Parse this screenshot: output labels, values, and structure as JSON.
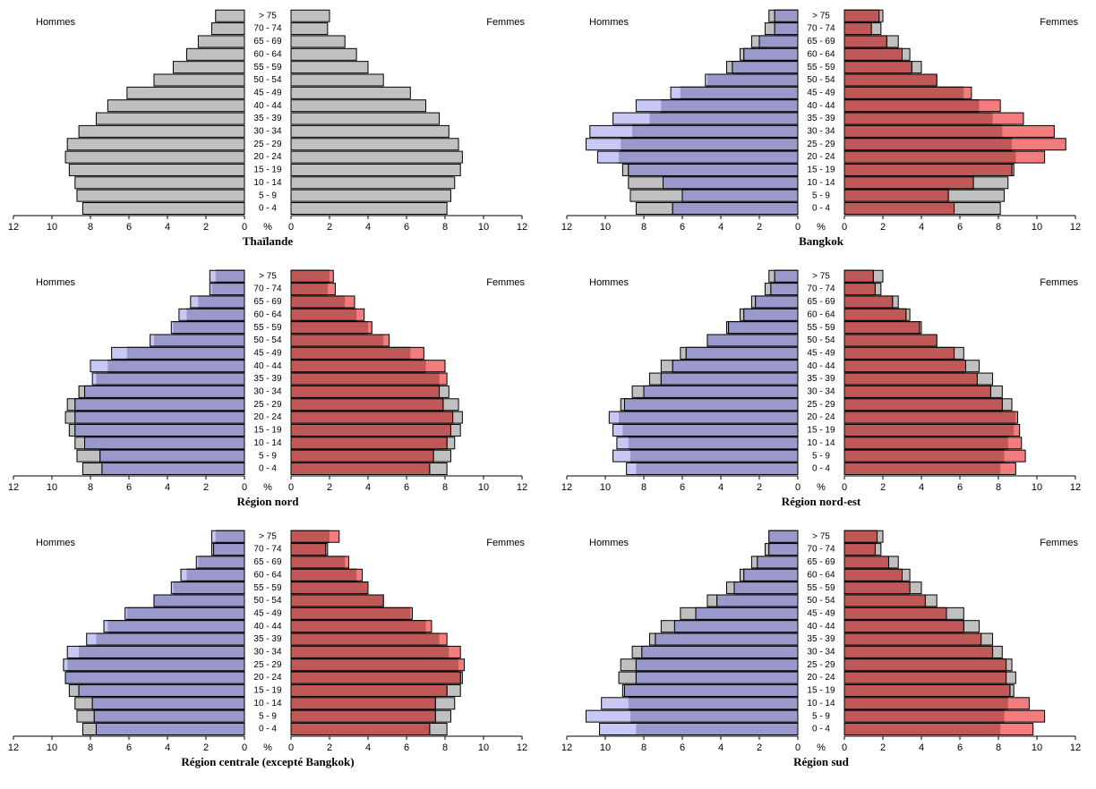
{
  "chart_data": [
    {
      "type": "pyramid",
      "title": "Thaïlande",
      "axis_unit": "%",
      "categories": [
        "0 - 4",
        "5 - 9",
        "10 - 14",
        "15 - 19",
        "20 - 24",
        "25 - 29",
        "30 - 34",
        "35 - 39",
        "40 - 44",
        "45 - 49",
        "50 - 54",
        "55 - 59",
        "60 - 64",
        "65 - 69",
        "70 - 74",
        "> 75"
      ],
      "series": [
        {
          "name": "Hommes",
          "color": "#c0c0c0",
          "values": [
            8.4,
            8.7,
            8.8,
            9.1,
            9.3,
            9.2,
            8.6,
            7.7,
            7.1,
            6.1,
            4.7,
            3.7,
            3.0,
            2.4,
            1.7,
            1.5
          ]
        },
        {
          "name": "Femmes",
          "color": "#c0c0c0",
          "values": [
            8.1,
            8.3,
            8.5,
            8.8,
            8.9,
            8.7,
            8.2,
            7.7,
            7.0,
            6.2,
            4.8,
            4.0,
            3.4,
            2.8,
            1.9,
            2.0
          ]
        }
      ],
      "xlim": [
        0,
        12
      ],
      "xticks": [
        0,
        2,
        4,
        6,
        8,
        10,
        12
      ]
    },
    {
      "type": "pyramid",
      "title": "Bangkok",
      "axis_unit": "%",
      "categories": [
        "0 - 4",
        "5 - 9",
        "10 - 14",
        "15 - 19",
        "20 - 24",
        "25 - 29",
        "30 - 34",
        "35 - 39",
        "40 - 44",
        "45 - 49",
        "50 - 54",
        "55 - 59",
        "60 - 64",
        "65 - 69",
        "70 - 74",
        "> 75"
      ],
      "series": [
        {
          "name": "Hommes",
          "color": "#9999cc",
          "light_color": "#c8c8f4",
          "values": [
            6.5,
            6.0,
            7.0,
            8.8,
            10.4,
            11.0,
            10.8,
            9.6,
            8.4,
            6.6,
            4.8,
            3.4,
            2.8,
            2.0,
            1.2,
            1.2
          ]
        },
        {
          "name": "Femmes",
          "color": "#c05858",
          "light_color": "#f47c7c",
          "values": [
            5.7,
            5.4,
            6.7,
            8.7,
            10.4,
            11.5,
            10.9,
            9.3,
            8.1,
            6.6,
            4.8,
            3.5,
            3.0,
            2.2,
            1.4,
            1.8
          ]
        }
      ],
      "reference_series": [
        {
          "color": "#c0c0c0",
          "values": [
            8.4,
            8.7,
            8.8,
            9.1,
            9.3,
            9.2,
            8.6,
            7.7,
            7.1,
            6.1,
            4.7,
            3.7,
            3.0,
            2.4,
            1.7,
            1.5
          ]
        },
        {
          "color": "#c0c0c0",
          "values": [
            8.1,
            8.3,
            8.5,
            8.8,
            8.9,
            8.7,
            8.2,
            7.7,
            7.0,
            6.2,
            4.8,
            4.0,
            3.4,
            2.8,
            1.9,
            2.0
          ]
        }
      ],
      "xlim": [
        0,
        12
      ],
      "xticks": [
        0,
        2,
        4,
        6,
        8,
        10,
        12
      ]
    },
    {
      "type": "pyramid",
      "title": "Région nord",
      "axis_unit": "%",
      "categories": [
        "0 - 4",
        "5 - 9",
        "10 - 14",
        "15 - 19",
        "20 - 24",
        "25 - 29",
        "30 - 34",
        "35 - 39",
        "40 - 44",
        "45 - 49",
        "50 - 54",
        "55 - 59",
        "60 - 64",
        "65 - 69",
        "70 - 74",
        "> 75"
      ],
      "series": [
        {
          "name": "Hommes",
          "color": "#9999cc",
          "light_color": "#c8c8f4",
          "values": [
            7.4,
            7.5,
            8.3,
            8.8,
            8.8,
            8.8,
            8.3,
            7.9,
            8.0,
            6.9,
            4.9,
            3.8,
            3.4,
            2.8,
            1.8,
            1.8
          ]
        },
        {
          "name": "Femmes",
          "color": "#c05858",
          "light_color": "#f47c7c",
          "values": [
            7.2,
            7.4,
            8.1,
            8.3,
            8.4,
            7.9,
            7.7,
            8.1,
            8.0,
            6.9,
            5.1,
            4.2,
            3.8,
            3.3,
            2.3,
            2.2
          ]
        }
      ],
      "reference_series": [
        {
          "color": "#c0c0c0",
          "values": [
            8.4,
            8.7,
            8.8,
            9.1,
            9.3,
            9.2,
            8.6,
            7.7,
            7.1,
            6.1,
            4.7,
            3.7,
            3.0,
            2.4,
            1.7,
            1.5
          ]
        },
        {
          "color": "#c0c0c0",
          "values": [
            8.1,
            8.3,
            8.5,
            8.8,
            8.9,
            8.7,
            8.2,
            7.7,
            7.0,
            6.2,
            4.8,
            4.0,
            3.4,
            2.8,
            1.9,
            2.0
          ]
        }
      ],
      "xlim": [
        0,
        12
      ],
      "xticks": [
        0,
        2,
        4,
        6,
        8,
        10,
        12
      ]
    },
    {
      "type": "pyramid",
      "title": "Région nord-est",
      "axis_unit": "%",
      "categories": [
        "0 - 4",
        "5 - 9",
        "10 - 14",
        "15 - 19",
        "20 - 24",
        "25 - 29",
        "30 - 34",
        "35 - 39",
        "40 - 44",
        "45 - 49",
        "50 - 54",
        "55 - 59",
        "60 - 64",
        "65 - 69",
        "70 - 74",
        "> 75"
      ],
      "series": [
        {
          "name": "Hommes",
          "color": "#9999cc",
          "light_color": "#c8c8f4",
          "values": [
            8.9,
            9.6,
            9.4,
            9.6,
            9.8,
            9.0,
            8.0,
            7.1,
            6.5,
            5.8,
            4.7,
            3.6,
            2.8,
            2.2,
            1.4,
            1.2
          ]
        },
        {
          "name": "Femmes",
          "color": "#c05858",
          "light_color": "#f47c7c",
          "values": [
            8.9,
            9.4,
            9.2,
            9.1,
            9.0,
            8.2,
            7.6,
            6.9,
            6.3,
            5.7,
            4.8,
            3.9,
            3.2,
            2.5,
            1.6,
            1.5
          ]
        }
      ],
      "reference_series": [
        {
          "color": "#c0c0c0",
          "values": [
            8.4,
            8.7,
            8.8,
            9.1,
            9.3,
            9.2,
            8.6,
            7.7,
            7.1,
            6.1,
            4.7,
            3.7,
            3.0,
            2.4,
            1.7,
            1.5
          ]
        },
        {
          "color": "#c0c0c0",
          "values": [
            8.1,
            8.3,
            8.5,
            8.8,
            8.9,
            8.7,
            8.2,
            7.7,
            7.0,
            6.2,
            4.8,
            4.0,
            3.4,
            2.8,
            1.9,
            2.0
          ]
        }
      ],
      "xlim": [
        0,
        12
      ],
      "xticks": [
        0,
        2,
        4,
        6,
        8,
        10,
        12
      ]
    },
    {
      "type": "pyramid",
      "title": "Région centrale (excepté Bangkok)",
      "axis_unit": "%",
      "categories": [
        "0 - 4",
        "5 - 9",
        "10 - 14",
        "15 - 19",
        "20 - 24",
        "25 - 29",
        "30 - 34",
        "35 - 39",
        "40 - 44",
        "45 - 49",
        "50 - 54",
        "55 - 59",
        "60 - 64",
        "65 - 69",
        "70 - 74",
        "> 75"
      ],
      "series": [
        {
          "name": "Hommes",
          "color": "#9999cc",
          "light_color": "#c8c8f4",
          "values": [
            7.7,
            7.8,
            7.9,
            8.6,
            9.3,
            9.4,
            9.2,
            8.2,
            7.3,
            6.2,
            4.7,
            3.8,
            3.3,
            2.5,
            1.6,
            1.7
          ]
        },
        {
          "name": "Femmes",
          "color": "#c05858",
          "light_color": "#f47c7c",
          "values": [
            7.2,
            7.5,
            7.5,
            8.1,
            8.8,
            9.0,
            8.8,
            8.1,
            7.3,
            6.3,
            4.8,
            4.0,
            3.7,
            3.0,
            1.8,
            2.5
          ]
        }
      ],
      "reference_series": [
        {
          "color": "#c0c0c0",
          "values": [
            8.4,
            8.7,
            8.8,
            9.1,
            9.3,
            9.2,
            8.6,
            7.7,
            7.1,
            6.1,
            4.7,
            3.7,
            3.0,
            2.4,
            1.7,
            1.5
          ]
        },
        {
          "color": "#c0c0c0",
          "values": [
            8.1,
            8.3,
            8.5,
            8.8,
            8.9,
            8.7,
            8.2,
            7.7,
            7.0,
            6.2,
            4.8,
            4.0,
            3.4,
            2.8,
            1.9,
            2.0
          ]
        }
      ],
      "xlim": [
        0,
        12
      ],
      "xticks": [
        0,
        2,
        4,
        6,
        8,
        10,
        12
      ]
    },
    {
      "type": "pyramid",
      "title": "Région sud",
      "axis_unit": "%",
      "categories": [
        "0 - 4",
        "5 - 9",
        "10 - 14",
        "15 - 19",
        "20 - 24",
        "25 - 29",
        "30 - 34",
        "35 - 39",
        "40 - 44",
        "45 - 49",
        "50 - 54",
        "55 - 59",
        "60 - 64",
        "65 - 69",
        "70 - 74",
        "> 75"
      ],
      "series": [
        {
          "name": "Hommes",
          "color": "#9999cc",
          "light_color": "#c8c8f4",
          "values": [
            10.3,
            11.0,
            10.2,
            9.0,
            8.4,
            8.4,
            8.1,
            7.4,
            6.4,
            5.3,
            4.2,
            3.3,
            2.8,
            2.1,
            1.5,
            1.5
          ]
        },
        {
          "name": "Femmes",
          "color": "#c05858",
          "light_color": "#f47c7c",
          "values": [
            9.8,
            10.4,
            9.6,
            8.6,
            8.4,
            8.4,
            7.7,
            7.1,
            6.2,
            5.3,
            4.2,
            3.4,
            3.0,
            2.3,
            1.6,
            1.7
          ]
        }
      ],
      "reference_series": [
        {
          "color": "#c0c0c0",
          "values": [
            8.4,
            8.7,
            8.8,
            9.1,
            9.3,
            9.2,
            8.6,
            7.7,
            7.1,
            6.1,
            4.7,
            3.7,
            3.0,
            2.4,
            1.7,
            1.5
          ]
        },
        {
          "color": "#c0c0c0",
          "values": [
            8.1,
            8.3,
            8.5,
            8.8,
            8.9,
            8.7,
            8.2,
            7.7,
            7.0,
            6.2,
            4.8,
            4.0,
            3.4,
            2.8,
            1.9,
            2.0
          ]
        }
      ],
      "xlim": [
        0,
        12
      ],
      "xticks": [
        0,
        2,
        4,
        6,
        8,
        10,
        12
      ]
    }
  ]
}
